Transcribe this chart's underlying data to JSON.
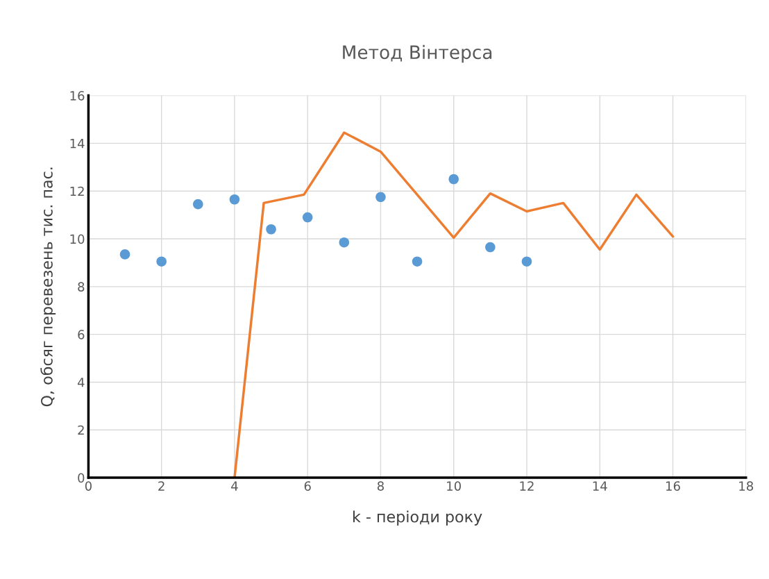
{
  "chart_data": {
    "type": "scatter",
    "title": "Метод Вінтерса",
    "xlabel": "k - періоди року",
    "ylabel": "Q, обсяг перевезень тис. пас.",
    "series": [
      {
        "color": "#5b9bd5",
        "marker": "circle",
        "x": [
          1,
          2,
          3,
          4,
          5,
          6,
          7,
          8,
          9,
          10,
          11,
          12
        ],
        "values": [
          9.35,
          9.05,
          11.45,
          11.65,
          10.4,
          10.9,
          9.85,
          11.75,
          9.05,
          12.5,
          9.65,
          9.05
        ]
      },
      {
        "type": "line",
        "color": "#ed7d31",
        "marker": "none",
        "x": [
          4,
          4.8,
          5.9,
          7,
          8,
          9,
          10,
          11,
          12,
          13,
          14,
          15,
          16
        ],
        "values": [
          0,
          11.5,
          11.85,
          14.45,
          13.65,
          11.85,
          10.05,
          11.9,
          11.15,
          11.5,
          9.55,
          11.85,
          10.1
        ]
      }
    ],
    "xlim": [
      0,
      18
    ],
    "xticks": [
      0,
      2,
      4,
      6,
      8,
      10,
      12,
      14,
      16,
      18
    ],
    "ylim": [
      0,
      16
    ],
    "yticks": [
      0,
      2,
      4,
      6,
      8,
      10,
      12,
      14,
      16
    ],
    "grid": true
  }
}
